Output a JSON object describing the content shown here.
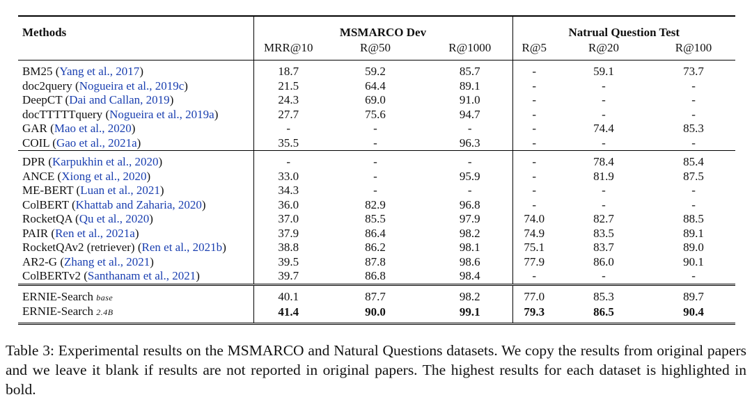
{
  "header": {
    "methods": "Methods",
    "group1": "MSMARCO Dev",
    "group2": "Natrual Question Test",
    "cols": [
      "MRR@10",
      "R@50",
      "R@1000",
      "R@5",
      "R@20",
      "R@100"
    ]
  },
  "groups": [
    [
      {
        "name": "BM25",
        "cite": "Yang et al., 2017",
        "vals": [
          "18.7",
          "59.2",
          "85.7",
          "-",
          "59.1",
          "73.7"
        ]
      },
      {
        "name": "doc2query",
        "cite": "Nogueira et al., 2019c",
        "vals": [
          "21.5",
          "64.4",
          "89.1",
          "-",
          "-",
          "-"
        ]
      },
      {
        "name": "DeepCT",
        "cite": "Dai and Callan, 2019",
        "vals": [
          "24.3",
          "69.0",
          "91.0",
          "-",
          "-",
          "-"
        ]
      },
      {
        "name": "docTTTTTquery",
        "cite": "Nogueira et al., 2019a",
        "vals": [
          "27.7",
          "75.6",
          "94.7",
          "-",
          "-",
          "-"
        ]
      },
      {
        "name": "GAR",
        "cite": "Mao et al., 2020",
        "vals": [
          "-",
          "-",
          "-",
          "-",
          "74.4",
          "85.3"
        ]
      },
      {
        "name": "COIL",
        "cite": "Gao et al., 2021a",
        "vals": [
          "35.5",
          "-",
          "96.3",
          "-",
          "-",
          "-"
        ]
      }
    ],
    [
      {
        "name": "DPR",
        "cite": "Karpukhin et al., 2020",
        "vals": [
          "-",
          "-",
          "-",
          "-",
          "78.4",
          "85.4"
        ]
      },
      {
        "name": "ANCE",
        "cite": "Xiong et al., 2020",
        "vals": [
          "33.0",
          "-",
          "95.9",
          "-",
          "81.9",
          "87.5"
        ]
      },
      {
        "name": "ME-BERT",
        "cite": "Luan et al., 2021",
        "vals": [
          "34.3",
          "-",
          "-",
          "-",
          "-",
          "-"
        ]
      },
      {
        "name": "ColBERT",
        "cite": "Khattab and Zaharia, 2020",
        "vals": [
          "36.0",
          "82.9",
          "96.8",
          "-",
          "-",
          "-"
        ]
      },
      {
        "name": "RocketQA",
        "cite": "Qu et al., 2020",
        "vals": [
          "37.0",
          "85.5",
          "97.9",
          "74.0",
          "82.7",
          "88.5"
        ]
      },
      {
        "name": "PAIR",
        "cite": "Ren et al., 2021a",
        "vals": [
          "37.9",
          "86.4",
          "98.2",
          "74.9",
          "83.5",
          "89.1"
        ]
      },
      {
        "name": "RocketQAv2 (retriever)",
        "cite": "Ren et al., 2021b",
        "vals": [
          "38.8",
          "86.2",
          "98.1",
          "75.1",
          "83.7",
          "89.0"
        ]
      },
      {
        "name": "AR2-G",
        "cite": "Zhang et al., 2021",
        "vals": [
          "39.5",
          "87.8",
          "98.6",
          "77.9",
          "86.0",
          "90.1"
        ]
      },
      {
        "name": "ColBERTv2",
        "cite": "Santhanam et al., 2021",
        "vals": [
          "39.7",
          "86.8",
          "98.4",
          "-",
          "-",
          "-"
        ]
      }
    ]
  ],
  "ernie": [
    {
      "name": "ERNIE-Search",
      "sub": "base",
      "vals": [
        "40.1",
        "87.7",
        "98.2",
        "77.0",
        "85.3",
        "89.7"
      ],
      "bold": false
    },
    {
      "name": "ERNIE-Search",
      "sub": "2.4B",
      "vals": [
        "41.4",
        "90.0",
        "99.1",
        "79.3",
        "86.5",
        "90.4"
      ],
      "bold": true
    }
  ],
  "caption": "Table 3: Experimental results on the MSMARCO and Natural Questions datasets. We copy the results from original papers and we leave it blank if results are not reported in original papers. The highest results for each dataset is highlighted in bold."
}
